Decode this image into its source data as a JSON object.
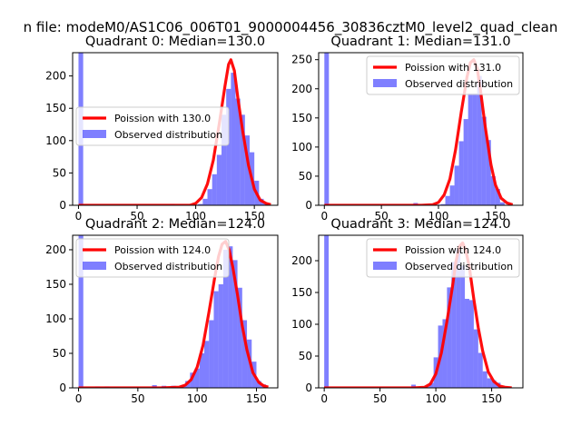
{
  "figure_title": "n file: modeM0/AS1C06_006T01_9000004456_30836cztM0_level2_quad_clean",
  "colors": {
    "fit": "#ff0000",
    "observed": "#0000ff",
    "observed_alpha": 0.5
  },
  "chart_data": [
    {
      "type": "bar+line",
      "title": "Quadrant 0: Median=130.0",
      "legend": {
        "position": "center-left",
        "line_label": "Poission with 130.0",
        "bar_label": "Observed distribution"
      },
      "xlim": [
        -5,
        170
      ],
      "ylim": [
        0,
        236
      ],
      "xticks": [
        0,
        50,
        100,
        150
      ],
      "yticks": [
        0,
        50,
        100,
        150,
        200
      ],
      "bin_width": 4,
      "bars": [
        [
          0,
          236
        ],
        [
          78,
          2
        ],
        [
          86,
          1
        ],
        [
          98,
          1
        ],
        [
          102,
          2
        ],
        [
          106,
          10
        ],
        [
          110,
          25
        ],
        [
          114,
          48
        ],
        [
          118,
          78
        ],
        [
          122,
          140
        ],
        [
          126,
          180
        ],
        [
          130,
          205
        ],
        [
          134,
          165
        ],
        [
          138,
          140
        ],
        [
          142,
          108
        ],
        [
          146,
          82
        ],
        [
          150,
          38
        ],
        [
          154,
          10
        ],
        [
          158,
          3
        ]
      ],
      "fit": {
        "x": [
          0,
          80,
          95,
          100,
          105,
          110,
          115,
          120,
          125,
          128,
          130,
          133,
          136,
          140,
          145,
          150,
          155,
          160,
          164
        ],
        "y": [
          0,
          0,
          0,
          3,
          12,
          33,
          70,
          125,
          185,
          218,
          225,
          208,
          165,
          115,
          62,
          25,
          8,
          3,
          1
        ]
      }
    },
    {
      "type": "bar+line",
      "title": "Quadrant 1: Median=131.0",
      "legend": {
        "position": "upper-right",
        "line_label": "Poission with 131.0",
        "bar_label": "Observed distribution"
      },
      "xlim": [
        -5,
        174
      ],
      "ylim": [
        0,
        262
      ],
      "xticks": [
        0,
        50,
        100,
        150
      ],
      "yticks": [
        0,
        50,
        100,
        150,
        200,
        250
      ],
      "bin_width": 4,
      "bars": [
        [
          0,
          262
        ],
        [
          78,
          4
        ],
        [
          98,
          1
        ],
        [
          102,
          2
        ],
        [
          106,
          16
        ],
        [
          110,
          34
        ],
        [
          114,
          68
        ],
        [
          118,
          110
        ],
        [
          122,
          148
        ],
        [
          126,
          192
        ],
        [
          130,
          192
        ],
        [
          134,
          222
        ],
        [
          138,
          152
        ],
        [
          142,
          112
        ],
        [
          146,
          50
        ],
        [
          150,
          28
        ],
        [
          154,
          5
        ]
      ],
      "fit": {
        "x": [
          0,
          85,
          95,
          100,
          105,
          110,
          115,
          120,
          125,
          128,
          131,
          134,
          137,
          141,
          146,
          150,
          155,
          160,
          165
        ],
        "y": [
          0,
          0,
          1,
          5,
          18,
          45,
          95,
          160,
          220,
          245,
          250,
          235,
          195,
          135,
          70,
          35,
          12,
          4,
          1
        ]
      }
    },
    {
      "type": "bar+line",
      "title": "Quadrant 2: Median=124.0",
      "legend": {
        "position": "upper-left",
        "line_label": "Poission with 124.0",
        "bar_label": "Observed distribution"
      },
      "xlim": [
        -5,
        168
      ],
      "ylim": [
        0,
        221
      ],
      "xticks": [
        0,
        50,
        100,
        150
      ],
      "yticks": [
        0,
        50,
        100,
        150,
        200
      ],
      "bin_width": 4,
      "bars": [
        [
          0,
          221
        ],
        [
          14,
          2
        ],
        [
          18,
          1
        ],
        [
          22,
          2
        ],
        [
          30,
          1
        ],
        [
          46,
          1
        ],
        [
          62,
          4
        ],
        [
          70,
          3
        ],
        [
          78,
          3
        ],
        [
          86,
          4
        ],
        [
          90,
          10
        ],
        [
          94,
          22
        ],
        [
          98,
          28
        ],
        [
          102,
          50
        ],
        [
          106,
          68
        ],
        [
          110,
          98
        ],
        [
          114,
          140
        ],
        [
          118,
          150
        ],
        [
          122,
          200
        ],
        [
          126,
          205
        ],
        [
          130,
          185
        ],
        [
          134,
          145
        ],
        [
          138,
          98
        ],
        [
          142,
          70
        ],
        [
          146,
          38
        ],
        [
          150,
          10
        ],
        [
          154,
          5
        ]
      ],
      "fit": {
        "x": [
          0,
          70,
          85,
          90,
          95,
          100,
          105,
          110,
          115,
          118,
          121,
          124,
          127,
          130,
          134,
          138,
          142,
          147,
          152,
          156,
          160
        ],
        "y": [
          0,
          0,
          1,
          4,
          12,
          30,
          62,
          110,
          162,
          190,
          208,
          212,
          200,
          175,
          135,
          90,
          55,
          22,
          8,
          3,
          1
        ]
      }
    },
    {
      "type": "bar+line",
      "title": "Quadrant 3: Median=124.0",
      "legend": {
        "position": "upper-right",
        "line_label": "Poission with 124.0",
        "bar_label": "Observed distribution"
      },
      "xlim": [
        -5,
        178
      ],
      "ylim": [
        0,
        240
      ],
      "xticks": [
        0,
        50,
        100,
        150
      ],
      "yticks": [
        0,
        50,
        100,
        150,
        200
      ],
      "bin_width": 4,
      "bars": [
        [
          0,
          240
        ],
        [
          78,
          5
        ],
        [
          90,
          2
        ],
        [
          94,
          8
        ],
        [
          98,
          48
        ],
        [
          102,
          98
        ],
        [
          106,
          108
        ],
        [
          110,
          158
        ],
        [
          114,
          198
        ],
        [
          118,
          218
        ],
        [
          122,
          192
        ],
        [
          126,
          140
        ],
        [
          130,
          138
        ],
        [
          134,
          92
        ],
        [
          138,
          55
        ],
        [
          142,
          26
        ],
        [
          146,
          15
        ],
        [
          150,
          12
        ],
        [
          154,
          8
        ]
      ],
      "fit": {
        "x": [
          0,
          80,
          90,
          95,
          100,
          105,
          110,
          115,
          118,
          121,
          124,
          127,
          130,
          134,
          138,
          142,
          147,
          152,
          157,
          162,
          168
        ],
        "y": [
          0,
          0,
          1,
          6,
          22,
          55,
          105,
          160,
          198,
          222,
          228,
          215,
          190,
          140,
          95,
          58,
          25,
          10,
          3,
          1,
          0
        ]
      }
    }
  ]
}
